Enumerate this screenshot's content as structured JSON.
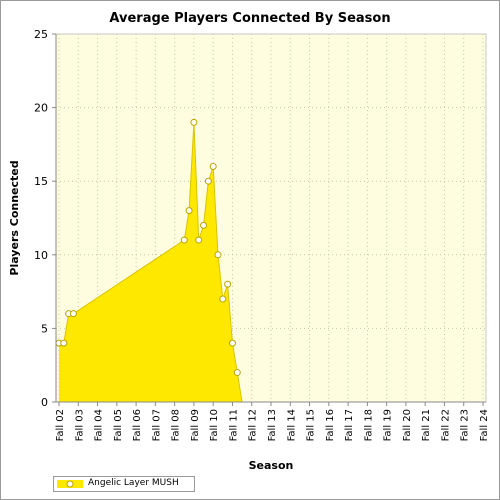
{
  "chart_data": {
    "type": "area",
    "title": "Average Players Connected By Season",
    "xlabel": "Season",
    "ylabel": "Players Connected",
    "ylim": [
      0,
      25
    ],
    "yticks": [
      0,
      5,
      10,
      15,
      20,
      25
    ],
    "grid": true,
    "legend_position": "bottom-left",
    "background": "#fffde0",
    "fill_color": "#ffe800",
    "line_color": "#d9c300",
    "categories": [
      "Fall 02",
      "Fall 03",
      "Fall 04",
      "Fall 05",
      "Fall 06",
      "Fall 07",
      "Fall 08",
      "Fall 09",
      "Fall 10",
      "Fall 11",
      "Fall 12",
      "Fall 13",
      "Fall 14",
      "Fall 15",
      "Fall 16",
      "Fall 17",
      "Fall 18",
      "Fall 19",
      "Fall 20",
      "Fall 21",
      "Fall 22",
      "Fall 23",
      "Fall 24"
    ],
    "series": [
      {
        "name": "Angelic Layer MUSH",
        "points": [
          {
            "x": 0.0,
            "y": 4
          },
          {
            "x": 0.25,
            "y": 4
          },
          {
            "x": 0.5,
            "y": 6
          },
          {
            "x": 0.75,
            "y": 6
          },
          {
            "x": 6.5,
            "y": 11
          },
          {
            "x": 6.75,
            "y": 13
          },
          {
            "x": 7.0,
            "y": 19
          },
          {
            "x": 7.25,
            "y": 11
          },
          {
            "x": 7.5,
            "y": 12
          },
          {
            "x": 7.75,
            "y": 15
          },
          {
            "x": 8.0,
            "y": 16
          },
          {
            "x": 8.25,
            "y": 10
          },
          {
            "x": 8.5,
            "y": 7
          },
          {
            "x": 8.75,
            "y": 8
          },
          {
            "x": 9.0,
            "y": 4
          },
          {
            "x": 9.25,
            "y": 2
          },
          {
            "x": 9.5,
            "y": 0
          },
          {
            "x": 22.0,
            "y": 0
          }
        ]
      }
    ]
  }
}
